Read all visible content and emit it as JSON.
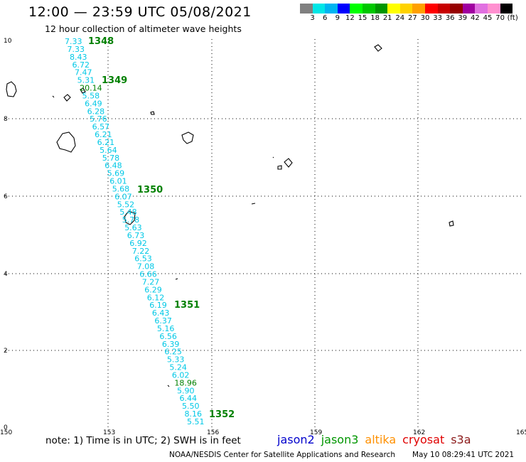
{
  "header": {
    "title": "12:00 — 23:59 UTC 05/08/2021",
    "subtitle": "12 hour collection of altimeter wave heights"
  },
  "scale": {
    "colors": [
      "#808080",
      "#00e6e6",
      "#00b4f0",
      "#0000ff",
      "#00ff00",
      "#00c800",
      "#009600",
      "#ffff00",
      "#ffd200",
      "#ffa000",
      "#ff0000",
      "#c80000",
      "#960000",
      "#a000a0",
      "#e070e0",
      "#ff90d0",
      "#000000"
    ],
    "labels": [
      "3",
      "6",
      "9",
      "12",
      "15",
      "18",
      "21",
      "24",
      "27",
      "30",
      "33",
      "36",
      "39",
      "42",
      "45",
      "70",
      "(ft)"
    ]
  },
  "axes": {
    "x_ticks": [
      "150",
      "153",
      "156",
      "159",
      "162",
      "165"
    ],
    "y_ticks": [
      "10",
      "8",
      "6",
      "4",
      "2",
      "0"
    ]
  },
  "track": {
    "passes": [
      "1348",
      "1349",
      "1350",
      "1351",
      "1352"
    ],
    "readings": [
      {
        "v": "7.33",
        "c": "cyan"
      },
      {
        "v": "7.33",
        "c": "cyan"
      },
      {
        "v": "8.43",
        "c": "cyan"
      },
      {
        "v": "6.72",
        "c": "cyan"
      },
      {
        "v": "7.47",
        "c": "cyan"
      },
      {
        "v": "5.31",
        "c": "cyan"
      },
      {
        "v": "20.14",
        "c": "green"
      },
      {
        "v": "5.58",
        "c": "cyan"
      },
      {
        "v": "6.49",
        "c": "cyan"
      },
      {
        "v": "6.28",
        "c": "cyan"
      },
      {
        "v": "5.76",
        "c": "cyan"
      },
      {
        "v": "6.57",
        "c": "cyan"
      },
      {
        "v": "6.21",
        "c": "cyan"
      },
      {
        "v": "6.21",
        "c": "cyan"
      },
      {
        "v": "5.64",
        "c": "cyan"
      },
      {
        "v": "5.78",
        "c": "cyan"
      },
      {
        "v": "6.48",
        "c": "cyan"
      },
      {
        "v": "5.69",
        "c": "cyan"
      },
      {
        "v": "6.01",
        "c": "cyan"
      },
      {
        "v": "5.68",
        "c": "cyan"
      },
      {
        "v": "6.07",
        "c": "cyan"
      },
      {
        "v": "5.52",
        "c": "cyan"
      },
      {
        "v": "5.48",
        "c": "cyan"
      },
      {
        "v": "5.78",
        "c": "cyan"
      },
      {
        "v": "5.63",
        "c": "cyan"
      },
      {
        "v": "6.73",
        "c": "cyan"
      },
      {
        "v": "6.92",
        "c": "cyan"
      },
      {
        "v": "7.22",
        "c": "cyan"
      },
      {
        "v": "6.53",
        "c": "cyan"
      },
      {
        "v": "7.08",
        "c": "cyan"
      },
      {
        "v": "6.66",
        "c": "cyan"
      },
      {
        "v": "7.27",
        "c": "cyan"
      },
      {
        "v": "6.29",
        "c": "cyan"
      },
      {
        "v": "6.12",
        "c": "cyan"
      },
      {
        "v": "6.19",
        "c": "cyan"
      },
      {
        "v": "6.43",
        "c": "cyan"
      },
      {
        "v": "6.37",
        "c": "cyan"
      },
      {
        "v": "5.16",
        "c": "cyan"
      },
      {
        "v": "6.56",
        "c": "cyan"
      },
      {
        "v": "6.39",
        "c": "cyan"
      },
      {
        "v": "6.25",
        "c": "cyan"
      },
      {
        "v": "5.33",
        "c": "cyan"
      },
      {
        "v": "5.24",
        "c": "cyan"
      },
      {
        "v": "6.02",
        "c": "cyan"
      },
      {
        "v": "18.96",
        "c": "green"
      },
      {
        "v": "5.90",
        "c": "cyan"
      },
      {
        "v": "6.44",
        "c": "cyan"
      },
      {
        "v": "5.50",
        "c": "cyan"
      },
      {
        "v": "8.16",
        "c": "cyan"
      },
      {
        "v": "5.51",
        "c": "cyan"
      }
    ]
  },
  "colors": {
    "cyan": "#00c8e6",
    "green": "#008000",
    "grid": "#000000"
  },
  "footer": {
    "note": "note: 1) Time is in UTC; 2) SWH is in feet",
    "legend": [
      {
        "label": "jason2",
        "color": "#0000cc"
      },
      {
        "label": "jason3",
        "color": "#009600"
      },
      {
        "label": "altika",
        "color": "#ff9000"
      },
      {
        "label": "cryosat",
        "color": "#e00000"
      },
      {
        "label": "s3a",
        "color": "#8b1a1a"
      }
    ],
    "credit": "NOAA/NESDIS Center for Satellite Applications and Research",
    "timestamp": "May 10 08:29:41 UTC 2021"
  }
}
